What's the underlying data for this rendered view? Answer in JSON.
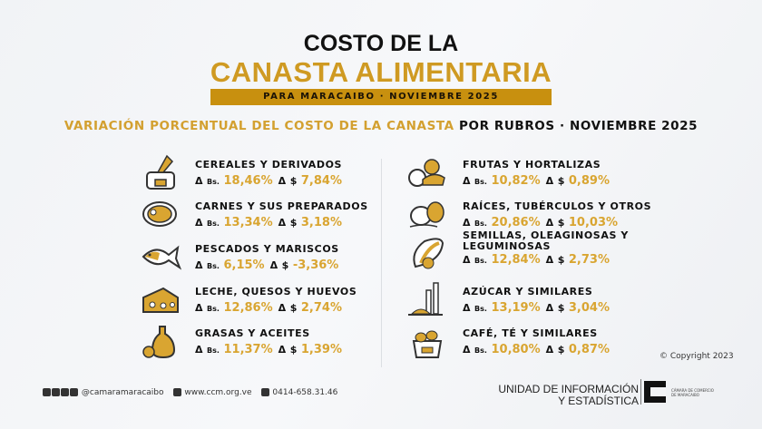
{
  "header": {
    "title_line1": "COSTO DE LA",
    "title_line2": "CANASTA ALIMENTARIA",
    "banner": "PARA MARACAIBO  ·  NOVIEMBRE 2025"
  },
  "subtitle": {
    "gold": "VARIACIÓN PORCENTUAL DEL COSTO DE LA CANASTA",
    "black": " POR RUBROS ·  NOVIEMBRE 2025"
  },
  "labels": {
    "delta": "Δ",
    "bs": "Bs.",
    "usd": "$"
  },
  "colors": {
    "accent": "#c8900f",
    "value": "#d9a531"
  },
  "left": [
    {
      "icon": "grain-sack-icon",
      "name": "CEREALES Y DERIVADOS",
      "bs": "18,46%",
      "usd": "7,84%"
    },
    {
      "icon": "meat-icon",
      "name": "CARNES Y SUS PREPARADOS",
      "bs": "13,34%",
      "usd": "3,18%"
    },
    {
      "icon": "fish-icon",
      "name": "PESCADOS Y MARISCOS",
      "bs": "6,15%",
      "usd": "-3,36%"
    },
    {
      "icon": "cheese-icon",
      "name": "LECHE, QUESOS Y HUEVOS",
      "bs": "12,86%",
      "usd": "2,74%"
    },
    {
      "icon": "oil-bottle-icon",
      "name": "GRASAS Y ACEITES",
      "bs": "11,37%",
      "usd": "1,39%"
    }
  ],
  "right": [
    {
      "icon": "vegetables-icon",
      "name": "FRUTAS Y HORTALIZAS",
      "bs": "10,82%",
      "usd": "0,89%"
    },
    {
      "icon": "tubers-icon",
      "name": "RAÍCES, TUBÉRCULOS Y OTROS",
      "bs": "20,86%",
      "usd": "10,03%"
    },
    {
      "icon": "seeds-icon",
      "name": "SEMILLAS, OLEAGINOSAS Y",
      "name2": "LEGUMINOSAS",
      "bs": "12,84%",
      "usd": "2,73%"
    },
    {
      "icon": "sugarcane-icon",
      "name": "AZÚCAR Y SIMILARES",
      "bs": "13,19%",
      "usd": "3,04%"
    },
    {
      "icon": "coffee-sack-icon",
      "name": "CAFÉ, TÉ Y SIMILARES",
      "bs": "10,80%",
      "usd": "0,87%"
    }
  ],
  "copyright": "© Copyright 2023",
  "footer": {
    "social": "@camaramaracaibo",
    "web": "www.ccm.org.ve",
    "phone": "0414-658.31.46",
    "unit_line1": "UNIDAD DE INFORMACIÓN",
    "unit_line2": "Y ESTADÍSTICA",
    "org": "CÁMARA DE COMERCIO DE MARACAIBO"
  }
}
